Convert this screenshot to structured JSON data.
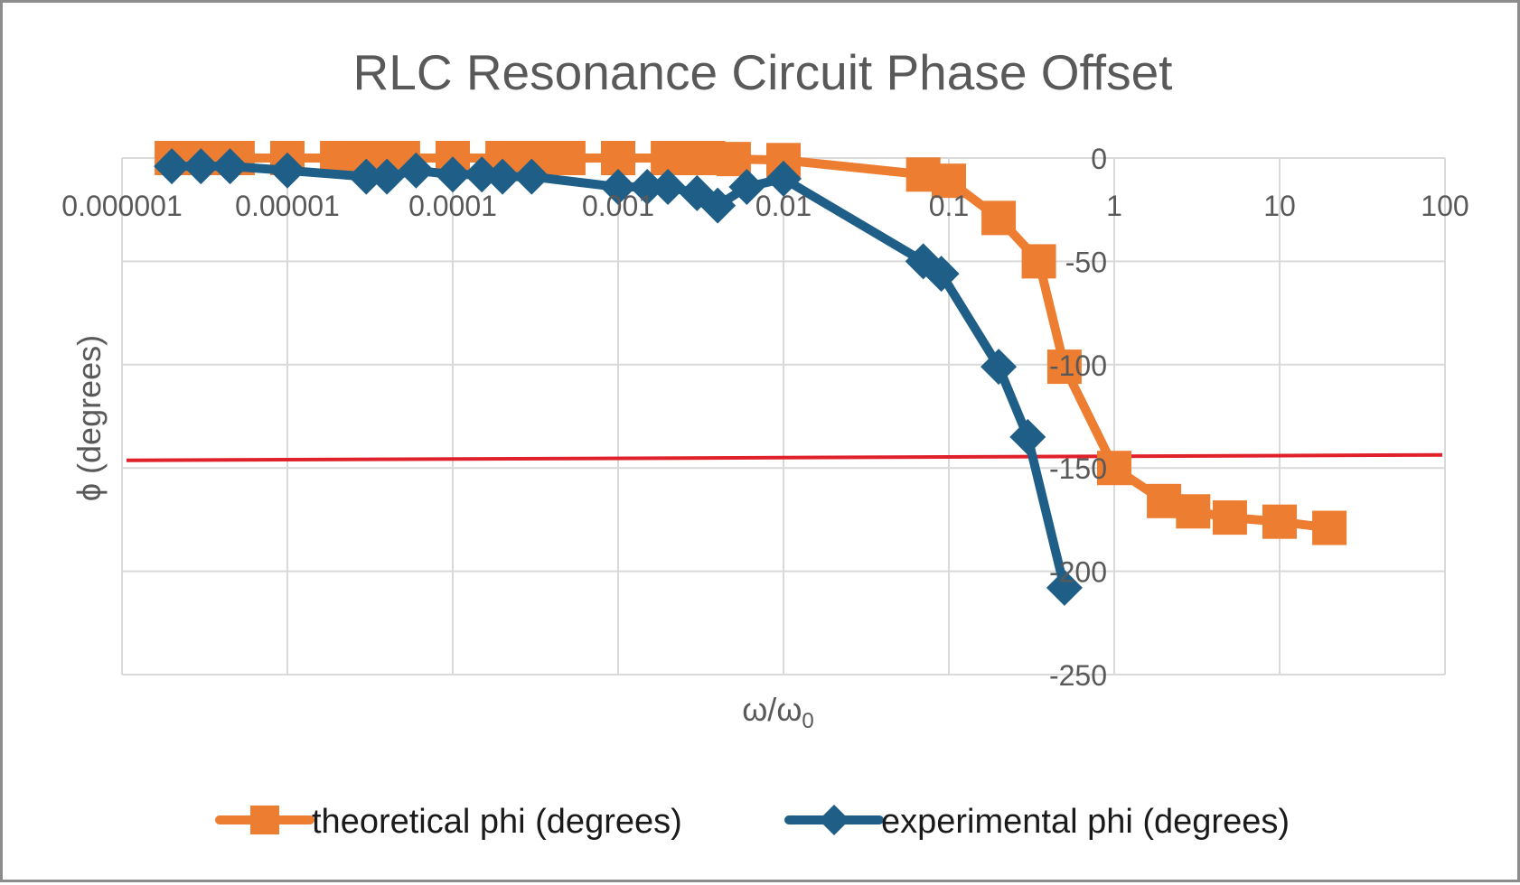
{
  "chart_data": {
    "type": "line",
    "title": "RLC Resonance Circuit Phase Offset",
    "xlabel": "ω/ω",
    "xlabel_subscript": "0",
    "ylabel": "ϕ (degrees)",
    "x_scale": "log",
    "xlim": [
      1e-06,
      100
    ],
    "ylim": [
      -250,
      0
    ],
    "x_ticks": [
      1e-06,
      1e-05,
      0.0001,
      0.001,
      0.01,
      0.1,
      1,
      10,
      100
    ],
    "x_tick_labels": [
      "0.000001",
      "0.00001",
      "0.0001",
      "0.001",
      "0.01",
      "0.1",
      "1",
      "10",
      "100"
    ],
    "y_ticks": [
      0,
      -50,
      -100,
      -150,
      -200,
      -250
    ],
    "y_tick_labels": [
      "0",
      "-50",
      "-100",
      "-150",
      "-200",
      "-250"
    ],
    "grid": true,
    "legend_position": "bottom",
    "reference_line": {
      "y": -145,
      "color": "#e0202a"
    },
    "series": [
      {
        "name": "theoretical phi (degrees)",
        "color": "#ed7d31",
        "marker": "square",
        "x": [
          2e-06,
          2.5e-06,
          3.5e-06,
          5e-06,
          1e-05,
          2e-05,
          2.5e-05,
          3.5e-05,
          5e-05,
          0.0001,
          0.0002,
          0.00025,
          0.00035,
          0.0005,
          0.001,
          0.002,
          0.0025,
          0.0035,
          0.005,
          0.01,
          0.07,
          0.1,
          0.2,
          0.35,
          0.5,
          1,
          2,
          3,
          5,
          10,
          20
        ],
        "y": [
          0,
          0,
          0,
          0,
          0,
          0,
          0,
          0,
          0,
          0,
          0,
          0,
          0,
          0,
          0,
          0,
          0,
          0,
          -0.5,
          -1,
          -8,
          -11,
          -29,
          -50,
          -101,
          -150,
          -166,
          -171,
          -174,
          -176,
          -179
        ]
      },
      {
        "name": "experimental phi (degrees)",
        "color": "#1f5f87",
        "marker": "diamond",
        "x": [
          2e-06,
          3e-06,
          4.5e-06,
          1e-05,
          3e-05,
          4e-05,
          6e-05,
          0.0001,
          0.00015,
          0.0002,
          0.0003,
          0.001,
          0.0015,
          0.002,
          0.003,
          0.004,
          0.006,
          0.01,
          0.07,
          0.09,
          0.2,
          0.3,
          0.5
        ],
        "y": [
          -4,
          -4,
          -4,
          -6,
          -9,
          -9,
          -6,
          -8,
          -8,
          -9,
          -9,
          -14,
          -14,
          -14,
          -17,
          -23,
          -14,
          -10,
          -50,
          -56,
          -101,
          -135,
          -208
        ]
      }
    ]
  }
}
